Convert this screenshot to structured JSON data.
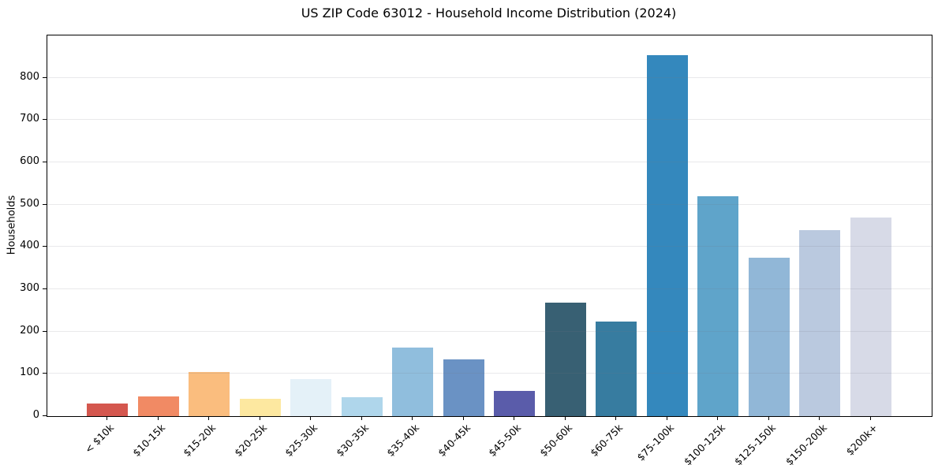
{
  "chart_data": {
    "type": "bar",
    "title": "US ZIP Code 63012 - Household Income Distribution (2024)",
    "xlabel": "",
    "ylabel": "Households",
    "categories": [
      "< $10k",
      "$10-15k",
      "$15-20k",
      "$20-25k",
      "$25-30k",
      "$30-35k",
      "$35-40k",
      "$40-45k",
      "$45-50k",
      "$50-60k",
      "$60-75k",
      "$75-100k",
      "$100-125k",
      "$125-150k",
      "$150-200k",
      "$200k+"
    ],
    "values": [
      30,
      46,
      105,
      41,
      88,
      44,
      162,
      134,
      60,
      268,
      223,
      853,
      519,
      374,
      439,
      470
    ],
    "bar_colors": [
      "#d4574e",
      "#f18a64",
      "#fabd7e",
      "#fde8a0",
      "#e4f1f8",
      "#afd6eb",
      "#90bedd",
      "#6a92c4",
      "#5a5caa",
      "#386073",
      "#377ca0",
      "#3488bd",
      "#5fa4ca",
      "#91b7d7",
      "#bac9df",
      "#d7dae7"
    ],
    "ylim": [
      0,
      900
    ],
    "yticks": [
      0,
      100,
      200,
      300,
      400,
      500,
      600,
      700,
      800
    ],
    "grid": "horizontal-only",
    "legend": "none",
    "background_color": "#ffffff",
    "spine_color": "#000000"
  }
}
